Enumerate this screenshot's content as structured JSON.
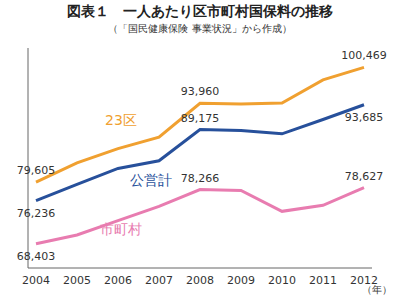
{
  "chart_data": {
    "type": "line",
    "title": "図表１　一人あたり区市町村国保料の推移",
    "subtitle": "（「国民健康保険 事業状況」から作成）",
    "x_label": "（年）",
    "categories": [
      "2004",
      "2005",
      "2006",
      "2007",
      "2008",
      "2009",
      "2010",
      "2011",
      "2012"
    ],
    "series": [
      {
        "name": "23区",
        "color": "#f0a030",
        "values": [
          79605,
          83100,
          85700,
          87800,
          93960,
          93800,
          94000,
          98200,
          100469
        ],
        "value_labels": [
          "79,605",
          null,
          null,
          null,
          "93,960",
          null,
          null,
          null,
          "100,469"
        ]
      },
      {
        "name": "公営計",
        "color": "#27509b",
        "values": [
          76236,
          79200,
          82100,
          83500,
          89175,
          89000,
          88400,
          91000,
          93685
        ],
        "value_labels": [
          "76,236",
          null,
          null,
          null,
          "89,175",
          null,
          null,
          null,
          "93,685"
        ]
      },
      {
        "name": "市町村",
        "color": "#e87cb0",
        "values": [
          68403,
          70000,
          72600,
          75200,
          78266,
          78100,
          74300,
          75400,
          78627
        ],
        "value_labels": [
          "68,403",
          null,
          null,
          null,
          "78,266",
          null,
          null,
          null,
          "78,627"
        ]
      }
    ],
    "ylim": [
      64000,
      104000
    ],
    "tick_labels": "x",
    "data_labels": true,
    "grid": false
  }
}
